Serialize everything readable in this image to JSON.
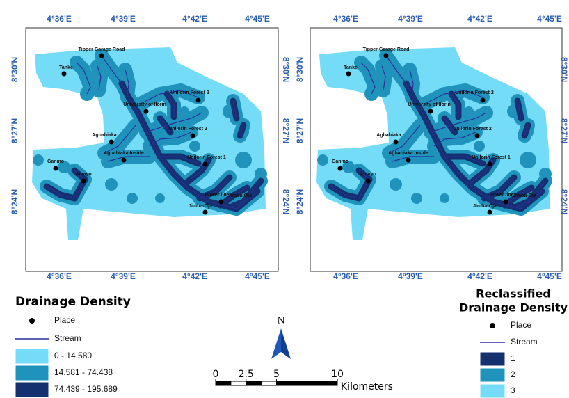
{
  "maps": [
    {
      "lon_labels_top": [
        "4°36'E",
        "4°39'E",
        "4°42'E",
        "4°45'E"
      ],
      "lon_labels_bottom": [
        "4°36'E",
        "4°39'E",
        "4°42'E",
        "4°45'E"
      ],
      "lat_labels_left": [
        "8°30'N",
        "8°27'N",
        "8°24'N"
      ],
      "lat_labels_right": [
        "8°30'N",
        "8°27'N",
        "8°24'N"
      ],
      "places": [
        "Tipper Garage Road",
        "Tanke",
        "Unilorin Forest 2",
        "University of Ilorin",
        "Agbabiaka",
        "Unilorin Forest 2",
        "Agbabiaka Inside",
        "Unilorin Forest 1",
        "Ganmo",
        "Amayo",
        "Power line",
        "Jimba-Oja",
        "Jimba-Oja"
      ]
    },
    {
      "lon_labels_top": [
        "4°36'E",
        "4°39'E",
        "4°42'E",
        "4°45'E"
      ],
      "lon_labels_bottom": [
        "4°36'E",
        "4°39'E",
        "4°42'E",
        "4°45'E"
      ],
      "lat_labels_left": [
        "8°30'N",
        "8°27'N",
        "8°24'N"
      ],
      "lat_labels_right": [
        "8°30'N",
        "8°27'N",
        "8°24'N"
      ],
      "places": [
        "Tipper Garage Road",
        "Tanke",
        "Unilorin Forest 2",
        "University of Ilorin",
        "Agbabiaka",
        "Unilorin Forest 2",
        "Agbabiaka Inside",
        "Unilorin Forest 1",
        "Ganmo",
        "Amayo",
        "Power line",
        "Jimba-Oja",
        "Jimba-Oja"
      ]
    }
  ],
  "legend_left": {
    "title": "Drainage Density",
    "items": [
      {
        "label": "Place"
      },
      {
        "label": "Stream"
      },
      {
        "label": "0 - 14.580",
        "color": "#74dcf6"
      },
      {
        "label": "14.581 - 74.438",
        "color": "#1f93bb"
      },
      {
        "label": "74.439 - 195.689",
        "color": "#14306f"
      }
    ]
  },
  "legend_right": {
    "title_lines": [
      "Reclassified",
      "Drainage Density"
    ],
    "items": [
      {
        "label": "Place"
      },
      {
        "label": "Stream"
      },
      {
        "label": "1",
        "color": "#14306f"
      },
      {
        "label": "2",
        "color": "#1f93bb"
      },
      {
        "label": "3",
        "color": "#74dcf6"
      }
    ]
  },
  "north_arrow": "N",
  "scale_bar": {
    "ticks": [
      0,
      2.5,
      5,
      10
    ],
    "unit": "Kilometers"
  }
}
